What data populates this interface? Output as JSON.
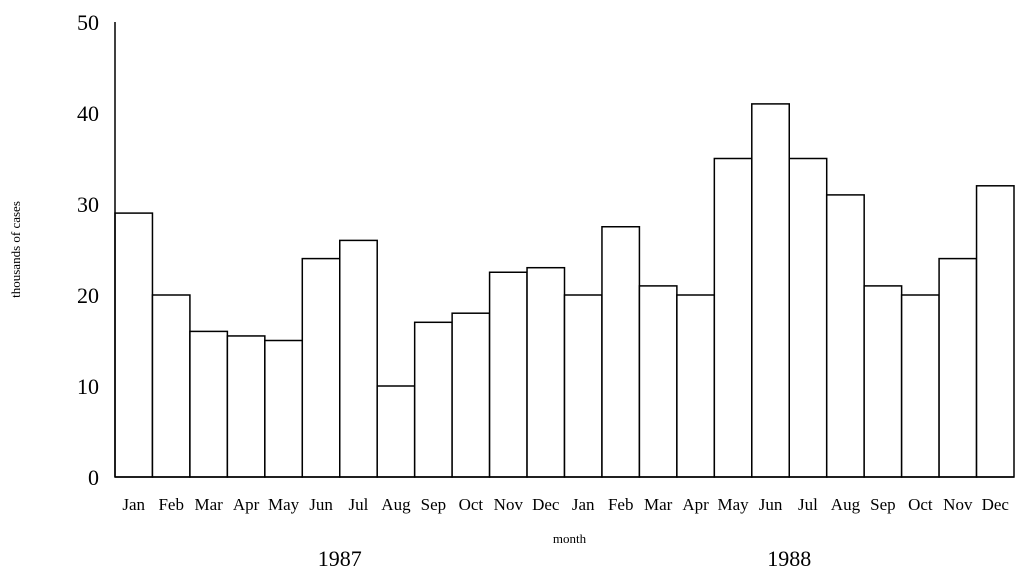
{
  "chart_data": {
    "type": "bar",
    "ylabel": "thousands of cases",
    "xlabel": "month",
    "ylim": [
      0,
      50
    ],
    "yticks": [
      "0",
      "10",
      "20",
      "30",
      "40",
      "50"
    ],
    "grid": false,
    "categories": [
      "Jan",
      "Feb",
      "Mar",
      "Apr",
      "May",
      "Jun",
      "Jul",
      "Aug",
      "Sep",
      "Oct",
      "Nov",
      "Dec",
      "Jan",
      "Feb",
      "Mar",
      "Apr",
      "May",
      "Jun",
      "Jul",
      "Aug",
      "Sep",
      "Oct",
      "Nov",
      "Dec"
    ],
    "values": [
      29,
      20,
      16,
      15.5,
      15,
      24,
      26,
      10,
      17,
      18,
      22.5,
      23,
      20,
      27.5,
      21,
      20,
      35,
      41,
      35,
      31,
      21,
      20,
      24,
      32
    ],
    "group_labels": [
      {
        "label": "1987",
        "start": 0,
        "end": 11
      },
      {
        "label": "1988",
        "start": 12,
        "end": 23
      }
    ],
    "bar_fill": "#ffffff",
    "bar_stroke": "#000000"
  }
}
